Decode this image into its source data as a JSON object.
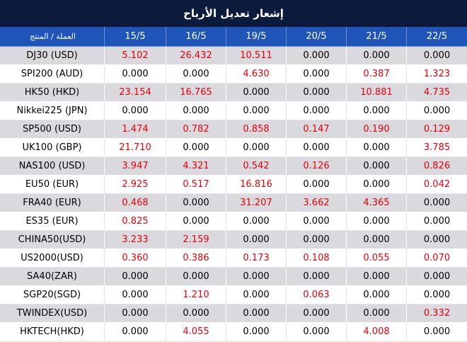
{
  "title": "إشعار تعديل الأرباح",
  "header": {
    "instrument_label": "العملة / المنتج",
    "dates": [
      "15/5",
      "16/5",
      "19/5",
      "20/5",
      "21/5",
      "22/5"
    ]
  },
  "colors": {
    "title_bg": "#0c1a3b",
    "header_bg": "#1f55b8",
    "shaded_row": "#d9d9de",
    "positive_value": "#e8000a",
    "zero_value": "#000000"
  },
  "rows": [
    {
      "instrument": "DJ30 (USD)",
      "values": [
        "5.102",
        "26.432",
        "10.511",
        "0.000",
        "0.000",
        "0.000"
      ]
    },
    {
      "instrument": "SPI200 (AUD)",
      "values": [
        "0.000",
        "0.000",
        "4.630",
        "0.000",
        "0.387",
        "1.323"
      ]
    },
    {
      "instrument": "HK50 (HKD)",
      "values": [
        "23.154",
        "16.765",
        "0.000",
        "0.000",
        "10.881",
        "4.735"
      ]
    },
    {
      "instrument": "Nikkei225 (JPN)",
      "values": [
        "0.000",
        "0.000",
        "0.000",
        "0.000",
        "0.000",
        "0.000"
      ]
    },
    {
      "instrument": "SP500 (USD)",
      "values": [
        "1.474",
        "0.782",
        "0.858",
        "0.147",
        "0.190",
        "0.129"
      ]
    },
    {
      "instrument": "UK100 (GBP)",
      "values": [
        "21.710",
        "0.000",
        "0.000",
        "0.000",
        "0.000",
        "3.785"
      ]
    },
    {
      "instrument": "NAS100 (USD)",
      "values": [
        "3.947",
        "4.321",
        "0.542",
        "0.126",
        "0.000",
        "0.826"
      ]
    },
    {
      "instrument": "EU50 (EUR)",
      "values": [
        "2.925",
        "0.517",
        "16.816",
        "0.000",
        "0.000",
        "0.042"
      ]
    },
    {
      "instrument": "FRA40 (EUR)",
      "values": [
        "0.468",
        "0.000",
        "31.207",
        "3.662",
        "4.365",
        "0.000"
      ]
    },
    {
      "instrument": "ES35 (EUR)",
      "values": [
        "0.825",
        "0.000",
        "0.000",
        "0.000",
        "0.000",
        "0.000"
      ]
    },
    {
      "instrument": "CHINA50(USD)",
      "values": [
        "3.233",
        "2.159",
        "0.000",
        "0.000",
        "0.000",
        "0.000"
      ]
    },
    {
      "instrument": "US2000(USD)",
      "values": [
        "0.360",
        "0.386",
        "0.173",
        "0.108",
        "0.055",
        "0.070"
      ]
    },
    {
      "instrument": "SA40(ZAR)",
      "values": [
        "0.000",
        "0.000",
        "0.000",
        "0.000",
        "0.000",
        "0.000"
      ]
    },
    {
      "instrument": "SGP20(SGD)",
      "values": [
        "0.000",
        "1.210",
        "0.000",
        "0.063",
        "0.000",
        "0.000"
      ]
    },
    {
      "instrument": "TWINDEX(USD)",
      "values": [
        "0.000",
        "0.000",
        "0.000",
        "0.000",
        "0.000",
        "0.332"
      ]
    },
    {
      "instrument": "HKTECH(HKD)",
      "values": [
        "0.000",
        "4.055",
        "0.000",
        "0.000",
        "4.008",
        "0.000"
      ]
    }
  ]
}
